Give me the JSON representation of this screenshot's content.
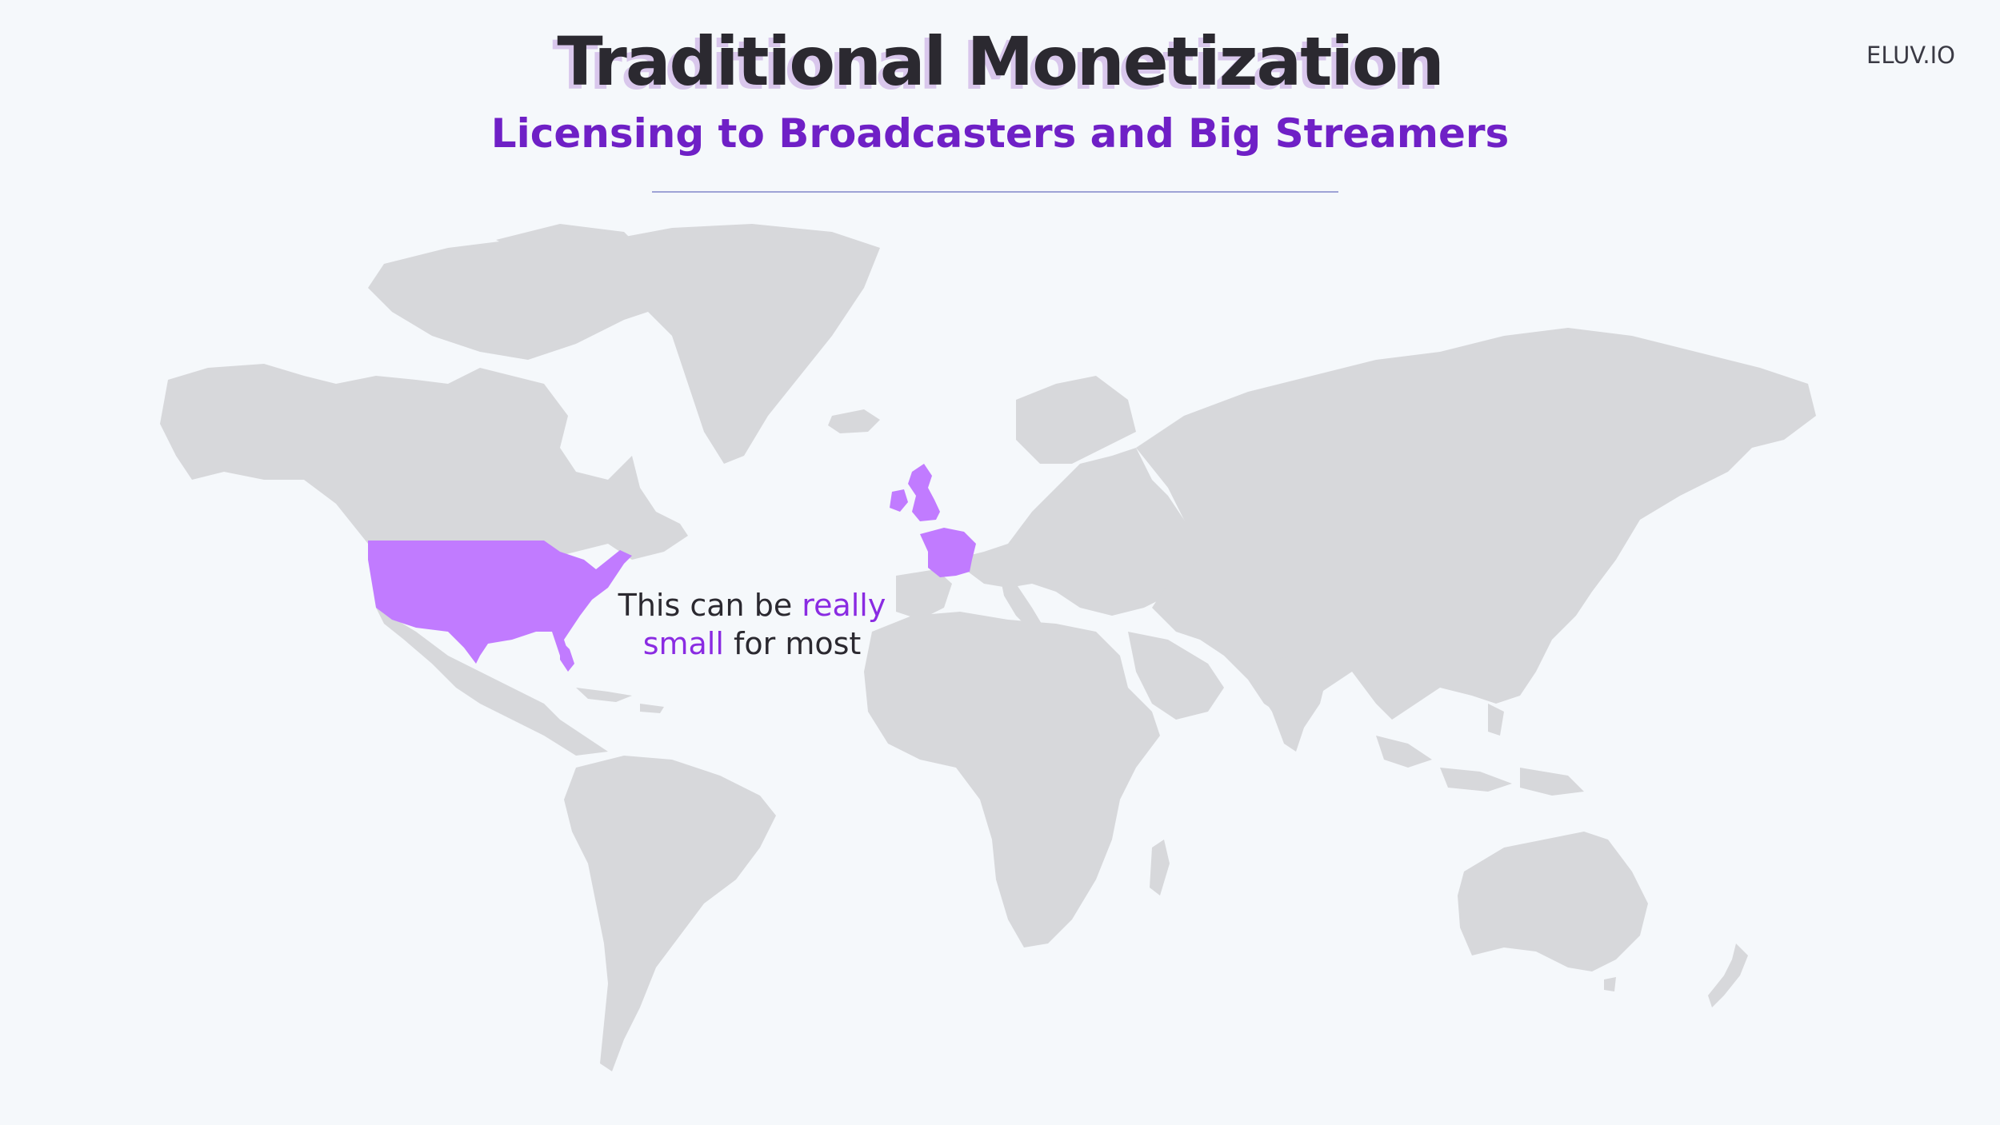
{
  "slide": {
    "title": "Traditional Monetization",
    "subtitle": "Licensing to Broadcasters and Big Streamers",
    "logo_text": "ELUV.IO"
  },
  "callout": {
    "part1": "This can be ",
    "part2": "really",
    "part3": " small",
    "part4": " for most"
  },
  "map": {
    "highlighted_regions": [
      "united-states",
      "united-kingdom",
      "ireland",
      "france"
    ],
    "colors": {
      "background": "#f5f8fb",
      "land": "#d7d8db",
      "highlight": "#c17bff",
      "title": "#2b2930",
      "subtitle": "#6f20c6",
      "accent_text": "#8a2be2"
    }
  }
}
